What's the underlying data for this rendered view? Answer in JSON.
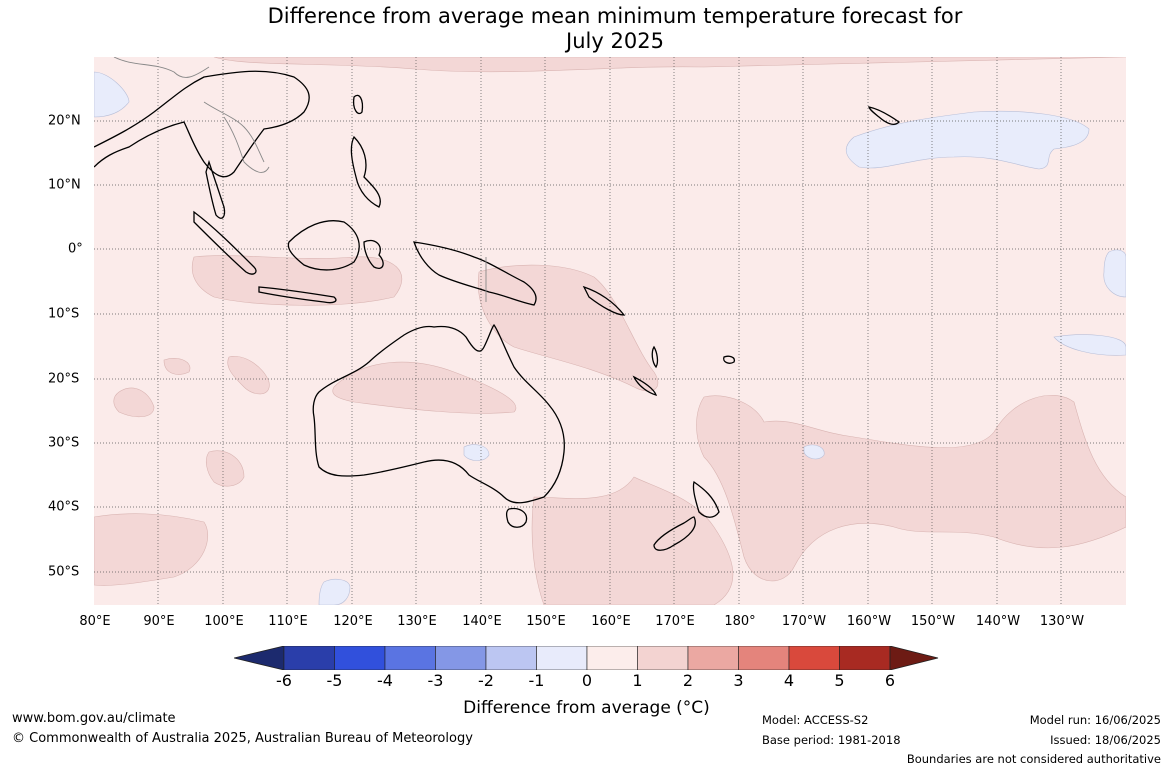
{
  "title_line1": "Difference from average mean minimum temperature forecast for",
  "title_line2": "July 2025",
  "longitude_ticks": [
    "80°E",
    "90°E",
    "100°E",
    "110°E",
    "120°E",
    "130°E",
    "140°E",
    "150°E",
    "160°E",
    "170°E",
    "180°",
    "170°W",
    "160°W",
    "150°W",
    "140°W",
    "130°W"
  ],
  "latitude_ticks": [
    "20°N",
    "10°N",
    "0°",
    "10°S",
    "20°S",
    "30°S",
    "40°S",
    "50°S"
  ],
  "colorbar": {
    "label": "Difference from average (°C)",
    "ticks": [
      "-6",
      "-5",
      "-4",
      "-3",
      "-2",
      "-1",
      "0",
      "1",
      "2",
      "3",
      "4",
      "5",
      "6"
    ],
    "colors": [
      "#1c2a6e",
      "#2a3eaa",
      "#3150dc",
      "#5a74e2",
      "#8497e6",
      "#bcc6f2",
      "#e8ebfb",
      "#fcedeb",
      "#f3d3d1",
      "#eba8a2",
      "#e4847c",
      "#d9493c",
      "#a82a22",
      "#6d1b14"
    ]
  },
  "map_colors": {
    "ocean": "#fbebea",
    "warm_anomaly": "#f3d7d6",
    "cool_anomaly": "#e8ecfb",
    "coast": "#000000",
    "border": "#888888"
  },
  "footer": {
    "website": "www.bom.gov.au/climate",
    "copyright": "© Commonwealth of Australia 2025, Australian Bureau of Meteorology",
    "model": "Model: ACCESS-S2",
    "base_period": "Base period: 1981-2018",
    "model_run": "Model run: 16/06/2025",
    "issued": "Issued: 18/06/2025",
    "disclaimer": "Boundaries are not considered authoritative"
  }
}
